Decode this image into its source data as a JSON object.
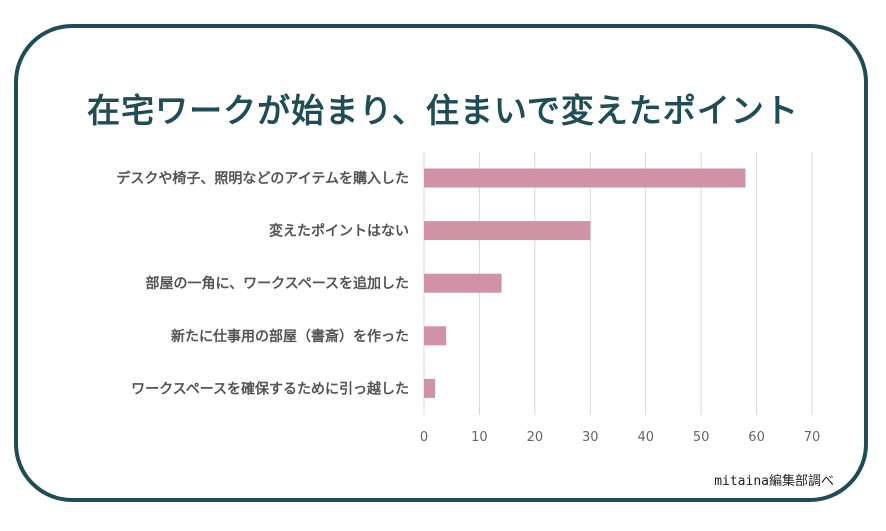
{
  "chart_data": {
    "type": "bar",
    "orientation": "horizontal",
    "title": "在宅ワークが始まり、住まいで変えたポイント",
    "categories": [
      "デスクや椅子、照明などのアイテムを購入した",
      "変えたポイントはない",
      "部屋の一角に、ワークスペースを追加した",
      "新たに仕事用の部屋（書斎）を作った",
      "ワークスペースを確保するために引っ越した"
    ],
    "values": [
      58,
      30,
      14,
      4,
      2
    ],
    "xlim": [
      0,
      70
    ],
    "xticks": [
      0,
      10,
      20,
      30,
      40,
      50,
      60,
      70
    ],
    "grid": true,
    "colors": {
      "bar": "#d093a6",
      "grid": "#d9d9d9",
      "frame": "#1f4d57"
    }
  },
  "source": "mitaina編集部調べ"
}
